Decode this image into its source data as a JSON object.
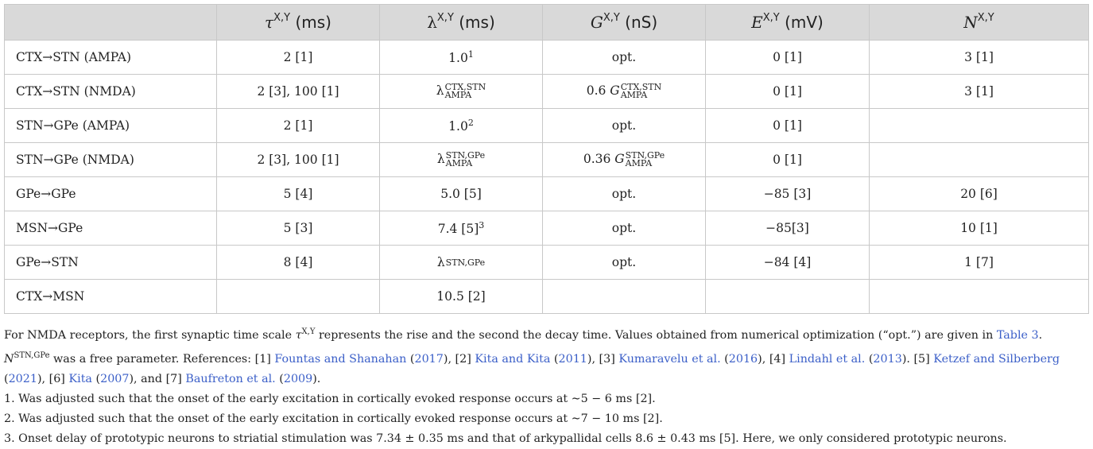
{
  "table": {
    "headers": [
      {
        "id": "label",
        "var": "",
        "sup": "",
        "unit": ""
      },
      {
        "id": "tau",
        "var": "τ",
        "sup": "X,Y",
        "unit": " (ms)"
      },
      {
        "id": "lambda",
        "var": "λ",
        "sup": "X,Y",
        "unit": " (ms)"
      },
      {
        "id": "G",
        "var": "G",
        "sup": "X,Y",
        "unit": " (nS)"
      },
      {
        "id": "E",
        "var": "E",
        "sup": "X,Y",
        "unit": " (mV)"
      },
      {
        "id": "N",
        "var": "N",
        "sup": "X,Y",
        "unit": ""
      }
    ],
    "rows": [
      {
        "label": "CTX→STN (AMPA)",
        "tau": "2 [1]",
        "lambda": {
          "base": "1.0",
          "sup": "1"
        },
        "G": {
          "text": "opt."
        },
        "E": "0 [1]",
        "N": "3 [1]"
      },
      {
        "label": "CTX→STN (NMDA)",
        "tau": "2 [3], 100 [1]",
        "lambda": {
          "sym": "λ",
          "top": "CTX,STN",
          "bot": "AMPA"
        },
        "G": {
          "prefix": "0.6 ",
          "sym": "G",
          "top": "CTX,STN",
          "bot": "AMPA"
        },
        "E": "0 [1]",
        "N": "3 [1]"
      },
      {
        "label": "STN→GPe (AMPA)",
        "tau": "2 [1]",
        "lambda": {
          "base": "1.0",
          "sup": "2"
        },
        "G": {
          "text": "opt."
        },
        "E": "0 [1]",
        "N": ""
      },
      {
        "label": "STN→GPe (NMDA)",
        "tau": "2 [3], 100 [1]",
        "lambda": {
          "sym": "λ",
          "top": "STN,GPe",
          "bot": "AMPA"
        },
        "G": {
          "prefix": "0.36 ",
          "sym": "G",
          "top": "STN,GPe",
          "bot": "AMPA"
        },
        "E": "0 [1]",
        "N": ""
      },
      {
        "label": "GPe→GPe",
        "tau": "5 [4]",
        "lambda": {
          "base": "5.0 [5]"
        },
        "G": {
          "text": "opt."
        },
        "E": "−85 [3]",
        "N": "20 [6]"
      },
      {
        "label": "MSN→GPe",
        "tau": "5 [3]",
        "lambda": {
          "base": "7.4 [5]",
          "sup": "3"
        },
        "G": {
          "text": "opt."
        },
        "E": "−85[3]",
        "N": "10 [1]"
      },
      {
        "label": "GPe→STN",
        "tau": "8 [4]",
        "lambda": {
          "sym": "λ",
          "top": "STN,GPe",
          "bot": ""
        },
        "G": {
          "text": "opt."
        },
        "E": "−84 [4]",
        "N": "1 [7]"
      },
      {
        "label": "CTX→MSN",
        "tau": "",
        "lambda": {
          "base": "10.5 [2]"
        },
        "G": {
          "text": ""
        },
        "E": "",
        "N": ""
      }
    ]
  },
  "footnotes": {
    "main": {
      "t1": "For NMDA receptors, the first synaptic time scale ",
      "tau_sym": "τ",
      "tau_sup": "X,Y",
      "t2": " represents the rise and the second the decay time. Values obtained from numerical optimization (“opt.”) are given in ",
      "link_table": "Table 3",
      "t3": ". ",
      "n_sym": "N",
      "n_sup": "STN,GPe",
      "t4": " was a free parameter. References: [1] ",
      "ref1": "Fountas and Shanahan",
      "ref1_year": "2017",
      "t5": "), [2] ",
      "ref2": "Kita and Kita",
      "ref2_year": "2011",
      "t6": "), [3] ",
      "ref3": "Kumaravelu et al.",
      "ref3_year": "2016",
      "t7": "), [4] ",
      "ref4": "Lindahl et al.",
      "ref4_year": "2013",
      "t8": "). [5] ",
      "ref5": "Ketzef and Silberberg",
      "ref5_year": "2021",
      "t9": "), [6] ",
      "ref6": "Kita",
      "ref6_year": "2007",
      "t10": "), and [7] ",
      "ref7": "Baufreton et al.",
      "ref7_year": "2009",
      "t11": ")."
    },
    "notes": [
      "1. Was adjusted such that the onset of the early excitation in cortically evoked response occurs at ∼5 − 6 ms [2].",
      "2. Was adjusted such that the onset of the early excitation in cortically evoked response occurs at ∼7 − 10 ms [2].",
      "3. Onset delay of prototypic neurons to striatial stimulation was 7.34 ± 0.35 ms and that of arkypallidal cells 8.6 ± 0.43 ms [5]. Here, we only considered prototypic neurons."
    ]
  },
  "colors": {
    "header_bg": "#d9d9d9",
    "border": "#c8c8c8",
    "link": "#3b5fc8",
    "text": "#222222"
  }
}
